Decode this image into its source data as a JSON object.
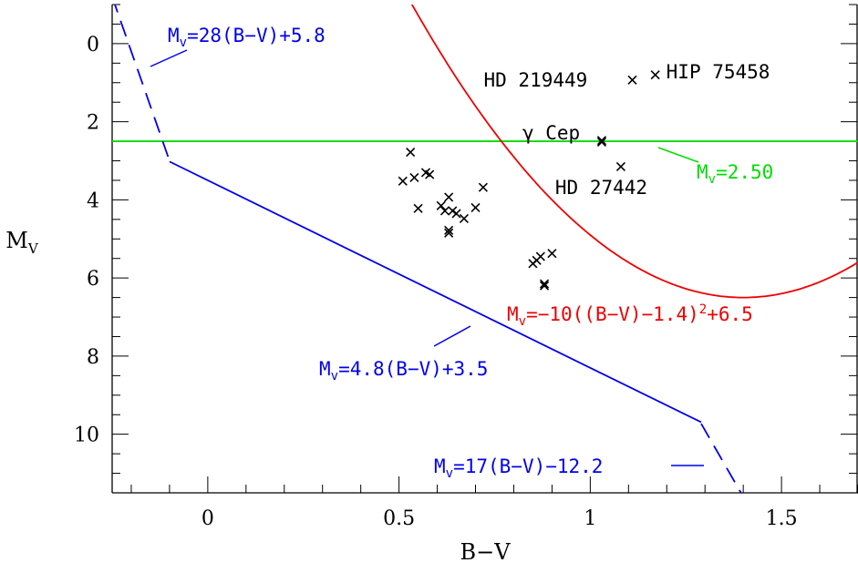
{
  "chart_data": {
    "type": "scatter",
    "xlabel": "B−V",
    "ylabel": "M_V",
    "xlim": [
      -0.25,
      1.7
    ],
    "ylim": [
      11.5,
      -1.0
    ],
    "x_ticks": [
      0,
      0.5,
      1,
      1.5
    ],
    "x_tick_labels": [
      "0",
      "0.5",
      "1",
      "1.5"
    ],
    "y_ticks": [
      0,
      2,
      4,
      6,
      8,
      10
    ],
    "y_tick_labels": [
      "0",
      "2",
      "4",
      "6",
      "8",
      "10"
    ],
    "grid": false,
    "points": [
      {
        "x": 0.53,
        "y": 2.78
      },
      {
        "x": 0.51,
        "y": 3.52
      },
      {
        "x": 0.54,
        "y": 3.43
      },
      {
        "x": 0.57,
        "y": 3.3
      },
      {
        "x": 0.58,
        "y": 3.35
      },
      {
        "x": 0.55,
        "y": 4.22
      },
      {
        "x": 0.61,
        "y": 4.15
      },
      {
        "x": 0.62,
        "y": 4.28
      },
      {
        "x": 0.63,
        "y": 3.93
      },
      {
        "x": 0.64,
        "y": 4.28
      },
      {
        "x": 0.65,
        "y": 4.35
      },
      {
        "x": 0.67,
        "y": 4.48
      },
      {
        "x": 0.7,
        "y": 4.2
      },
      {
        "x": 0.72,
        "y": 3.68
      },
      {
        "x": 0.63,
        "y": 4.78
      },
      {
        "x": 0.63,
        "y": 4.85
      },
      {
        "x": 0.85,
        "y": 5.63
      },
      {
        "x": 0.86,
        "y": 5.55
      },
      {
        "x": 0.87,
        "y": 5.45
      },
      {
        "x": 0.9,
        "y": 5.37
      },
      {
        "x": 0.88,
        "y": 6.15
      },
      {
        "x": 0.88,
        "y": 6.2
      },
      {
        "x": 1.03,
        "y": 2.48
      },
      {
        "x": 1.03,
        "y": 2.52
      },
      {
        "x": 1.08,
        "y": 3.15
      },
      {
        "x": 1.11,
        "y": 0.93
      },
      {
        "x": 1.17,
        "y": 0.8
      }
    ],
    "star_labels": [
      {
        "text": "HD 219449",
        "x": 1.11,
        "y": 0.93
      },
      {
        "text": "HIP 75458",
        "x": 1.17,
        "y": 0.8
      },
      {
        "text": "γ Cep",
        "x": 1.03,
        "y": 2.5
      },
      {
        "text": "HD 27442",
        "x": 1.08,
        "y": 3.15
      }
    ],
    "lines": [
      {
        "label": "M_v=2.50",
        "color": "#00dd00",
        "kind": "horizontal",
        "y": 2.5
      },
      {
        "label": "M_v=−10((B−V)−1.4)^2+6.5",
        "color": "#ee0000",
        "kind": "parabola",
        "a": -10,
        "x0": 1.4,
        "c": 6.5
      },
      {
        "label": "M_v=4.8(B−V)+3.5",
        "color": "#0000ee",
        "kind": "linear",
        "slope": 4.8,
        "intercept": 3.5,
        "x_range": [
          -0.1,
          1.29
        ],
        "dashed": false
      },
      {
        "label": "M_v=28(B−V)+5.8",
        "color": "#0000ee",
        "kind": "linear",
        "slope": 28,
        "intercept": 5.8,
        "x_range": [
          -0.25,
          -0.1
        ],
        "dashed": true
      },
      {
        "label": "M_v=17(B−V)−12.2",
        "color": "#0000ee",
        "kind": "linear",
        "slope": 17,
        "intercept": -12.2,
        "x_range": [
          1.29,
          1.4
        ],
        "dashed": true
      }
    ]
  }
}
